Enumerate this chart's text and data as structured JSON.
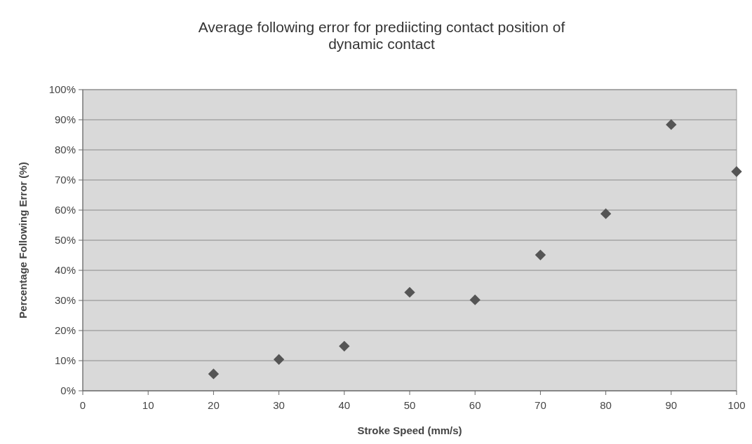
{
  "chart_data": {
    "type": "scatter",
    "title": "Average following error for prediicting contact position of dynamic contact",
    "xlabel": "Stroke Speed (mm/s)",
    "ylabel": "Percentage Following Error (%)",
    "x": [
      20,
      30,
      40,
      50,
      60,
      70,
      80,
      90,
      100
    ],
    "series": [
      {
        "color": "#555555",
        "values": [
          5.6,
          10.4,
          14.8,
          32.7,
          30.2,
          45.1,
          58.8,
          88.4,
          72.8
        ]
      }
    ],
    "xlim": [
      0,
      100
    ],
    "xticks": [
      0,
      10,
      20,
      30,
      40,
      50,
      60,
      70,
      80,
      90,
      100
    ],
    "ylim": [
      0,
      100
    ],
    "yticks": [
      {
        "value": 0,
        "label": "0%"
      },
      {
        "value": 10,
        "label": "10%"
      },
      {
        "value": 20,
        "label": "20%"
      },
      {
        "value": 30,
        "label": "30%"
      },
      {
        "value": 40,
        "label": "40%"
      },
      {
        "value": 50,
        "label": "50%"
      },
      {
        "value": 60,
        "label": "60%"
      },
      {
        "value": 70,
        "label": "70%"
      },
      {
        "value": 80,
        "label": "80%"
      },
      {
        "value": 90,
        "label": "90%"
      },
      {
        "value": 100,
        "label": "100%"
      }
    ],
    "grid": "y",
    "marker": "diamond"
  }
}
